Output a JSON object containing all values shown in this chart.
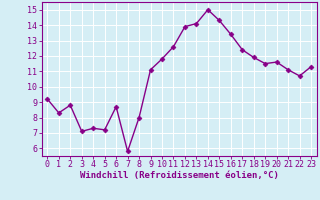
{
  "x": [
    0,
    1,
    2,
    3,
    4,
    5,
    6,
    7,
    8,
    9,
    10,
    11,
    12,
    13,
    14,
    15,
    16,
    17,
    18,
    19,
    20,
    21,
    22,
    23
  ],
  "y": [
    9.2,
    8.3,
    8.8,
    7.1,
    7.3,
    7.2,
    8.7,
    5.8,
    8.0,
    11.1,
    11.8,
    12.6,
    13.9,
    14.1,
    15.0,
    14.3,
    13.4,
    12.4,
    11.9,
    11.5,
    11.6,
    11.1,
    10.7,
    11.3
  ],
  "line_color": "#880088",
  "marker": "D",
  "marker_size": 2.5,
  "line_width": 1.0,
  "xlabel": "Windchill (Refroidissement éolien,°C)",
  "xlabel_fontsize": 6.5,
  "xlim": [
    -0.5,
    23.5
  ],
  "ylim": [
    5.5,
    15.5
  ],
  "yticks": [
    6,
    7,
    8,
    9,
    10,
    11,
    12,
    13,
    14,
    15
  ],
  "xtick_labels": [
    "0",
    "1",
    "2",
    "3",
    "4",
    "5",
    "6",
    "7",
    "8",
    "9",
    "10",
    "11",
    "12",
    "13",
    "14",
    "15",
    "16",
    "17",
    "18",
    "19",
    "20",
    "21",
    "22",
    "23"
  ],
  "background_color": "#d5eef5",
  "grid_color": "#ffffff",
  "tick_color": "#880088",
  "label_color": "#880088",
  "tick_fontsize": 6.0,
  "fig_width": 3.2,
  "fig_height": 2.0,
  "dpi": 100
}
